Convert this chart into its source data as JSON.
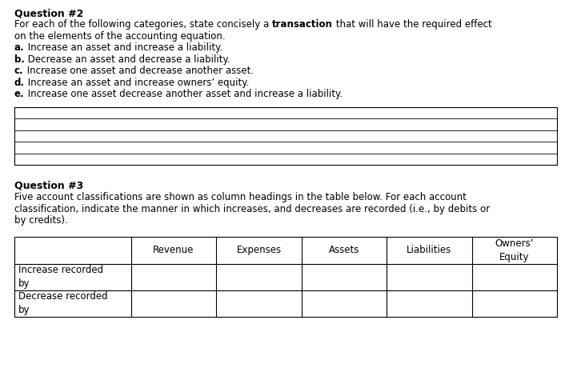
{
  "background_color": "#ffffff",
  "q2_title": "Question #2",
  "q2_intro_pre": "For each of the following categories, state concisely a ",
  "q2_intro_bold": "transaction",
  "q2_intro_post": " that will have the required effect",
  "q2_intro_line2": "on the elements of the accounting equation.",
  "q2_items": [
    {
      "label": "a.",
      "text": "Increase an asset and increase a liability."
    },
    {
      "label": "b.",
      "text": "Decrease an asset and decrease a liability."
    },
    {
      "label": "c.",
      "text": "Increase one asset and decrease another asset."
    },
    {
      "label": "d.",
      "text": "Increase an asset and increase owners’ equity."
    },
    {
      "label": "e.",
      "text": "Increase one asset decrease another asset and increase a liability."
    }
  ],
  "q3_title": "Question #3",
  "q3_intro_lines": [
    "Five account classifications are shown as column headings in the table below. For each account",
    "classification, indicate the manner in which increases, and decreases are recorded (i.e., by debits or",
    "by credits)."
  ],
  "table_col_headers": [
    "",
    "Revenue",
    "Expenses",
    "Assets",
    "Liabilities",
    "Owners’\nEquity"
  ],
  "table_row_headers": [
    "Increase recorded\nby",
    "Decrease recorded\nby"
  ],
  "font_family": "DejaVu Sans",
  "font_size_pt": 8.5,
  "title_font_size_pt": 9.0
}
